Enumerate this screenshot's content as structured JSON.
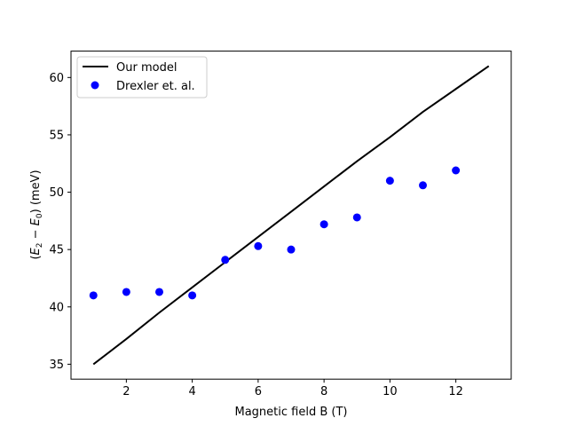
{
  "chart_data": {
    "type": "scatter",
    "title": "",
    "xlabel": "Magnetic field B (T)",
    "ylabel": {
      "prefix": "(",
      "E2_main": "E",
      "E2_sub": "2",
      "minus": " − ",
      "E0_main": "E",
      "E0_sub": "0",
      "suffix": ") (meV)"
    },
    "xlim": [
      0.32,
      13.68
    ],
    "ylim": [
      33.7,
      62.3
    ],
    "xticks": [
      2,
      4,
      6,
      8,
      10,
      12
    ],
    "yticks": [
      35,
      40,
      45,
      50,
      55,
      60
    ],
    "grid": false,
    "legend_position": "upper-left",
    "series": [
      {
        "name": "Our model",
        "kind": "line",
        "color": "#000000",
        "x": [
          1,
          2,
          3,
          4,
          5,
          6,
          7,
          8,
          9,
          10,
          11,
          12,
          13
        ],
        "y": [
          35.0,
          37.2,
          39.5,
          41.7,
          43.9,
          46.1,
          48.3,
          50.5,
          52.7,
          54.8,
          57.0,
          59.0,
          61.0
        ]
      },
      {
        "name": "Drexler et. al.",
        "kind": "scatter",
        "color": "#0000ff",
        "x": [
          1,
          2,
          3,
          4,
          5,
          6,
          7,
          8,
          9,
          10,
          11,
          12
        ],
        "y": [
          41.0,
          41.3,
          41.3,
          41.0,
          44.1,
          45.3,
          45.0,
          47.2,
          47.8,
          51.0,
          50.6,
          51.9
        ]
      }
    ]
  }
}
